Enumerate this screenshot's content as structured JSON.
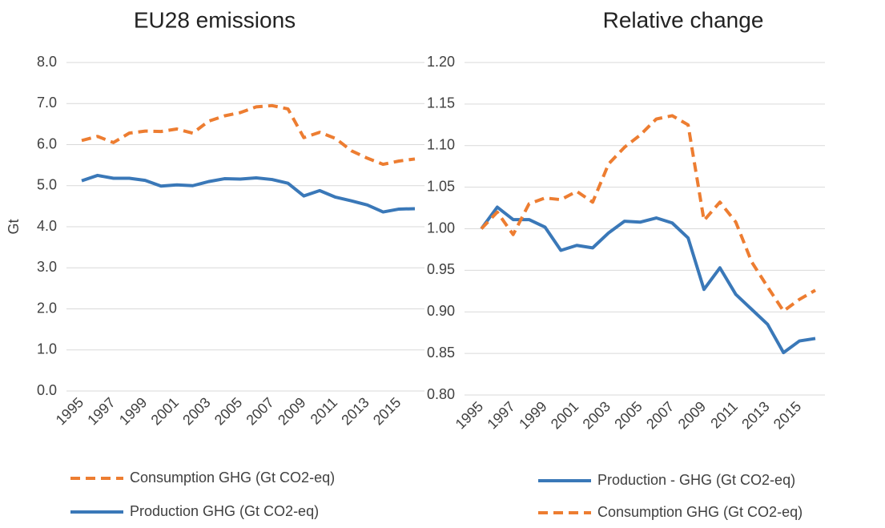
{
  "chart_data": [
    {
      "type": "line",
      "title": "EU28 emissions",
      "y_label": "Gt",
      "categories": [
        1995,
        null,
        1997,
        null,
        1999,
        null,
        2001,
        null,
        2003,
        null,
        2005,
        null,
        2007,
        null,
        2009,
        null,
        2011,
        null,
        2013,
        null,
        2015,
        null
      ],
      "series": [
        {
          "name": "Consumption GHG (Gt CO2-eq)",
          "color": "#ed7d31",
          "dashed": true,
          "values": [
            6.1,
            6.2,
            6.05,
            6.28,
            6.33,
            6.32,
            6.38,
            6.28,
            6.57,
            6.7,
            6.78,
            6.92,
            6.95,
            6.87,
            6.17,
            6.3,
            6.15,
            5.85,
            5.67,
            5.52,
            5.6,
            5.65
          ]
        },
        {
          "name": "Production GHG (Gt CO2-eq)",
          "color": "#3a78b8",
          "dashed": false,
          "values": [
            5.12,
            5.25,
            5.18,
            5.18,
            5.13,
            4.99,
            5.02,
            5.0,
            5.1,
            5.17,
            5.16,
            5.19,
            5.15,
            5.06,
            4.75,
            4.88,
            4.72,
            4.63,
            4.53,
            4.36,
            4.43,
            4.44
          ]
        }
      ],
      "ylim": [
        0,
        8
      ],
      "yticks": [
        {
          "value": 0,
          "label": "0.0"
        },
        {
          "value": 1,
          "label": "1.0"
        },
        {
          "value": 2,
          "label": "2.0"
        },
        {
          "value": 3,
          "label": "3.0"
        },
        {
          "value": 4,
          "label": "4.0"
        },
        {
          "value": 5,
          "label": "5.0"
        },
        {
          "value": 6,
          "label": "6.0"
        },
        {
          "value": 7,
          "label": "7.0"
        },
        {
          "value": 8,
          "label": "8.0"
        }
      ],
      "grid": true
    },
    {
      "type": "line",
      "title": "Relative change",
      "categories": [
        1995,
        null,
        1997,
        null,
        1999,
        null,
        2001,
        null,
        2003,
        null,
        2005,
        null,
        2007,
        null,
        2009,
        null,
        2011,
        null,
        2013,
        null,
        2015,
        null
      ],
      "series": [
        {
          "name": "Production - GHG (Gt CO2-eq)",
          "color": "#3a78b8",
          "dashed": false,
          "values": [
            1.0,
            1.026,
            1.011,
            1.011,
            1.002,
            0.974,
            0.98,
            0.977,
            0.995,
            1.009,
            1.008,
            1.013,
            1.007,
            0.989,
            0.927,
            0.953,
            0.921,
            0.903,
            0.885,
            0.851,
            0.865,
            0.868
          ]
        },
        {
          "name": "Consumption GHG (Gt CO2-eq)",
          "color": "#ed7d31",
          "dashed": true,
          "values": [
            1.0,
            1.02,
            0.993,
            1.03,
            1.037,
            1.035,
            1.045,
            1.032,
            1.078,
            1.098,
            1.113,
            1.132,
            1.136,
            1.125,
            1.01,
            1.032,
            1.008,
            0.96,
            0.93,
            0.901,
            0.915,
            0.926
          ]
        }
      ],
      "ylim": [
        0.8,
        1.2
      ],
      "yticks": [
        {
          "value": 0.8,
          "label": "0.80"
        },
        {
          "value": 0.85,
          "label": "0.85"
        },
        {
          "value": 0.9,
          "label": "0.90"
        },
        {
          "value": 0.95,
          "label": "0.95"
        },
        {
          "value": 1.0,
          "label": "1.00"
        },
        {
          "value": 1.05,
          "label": "1.05"
        },
        {
          "value": 1.1,
          "label": "1.10"
        },
        {
          "value": 1.15,
          "label": "1.15"
        },
        {
          "value": 1.2,
          "label": "1.20"
        }
      ],
      "grid": true
    }
  ]
}
